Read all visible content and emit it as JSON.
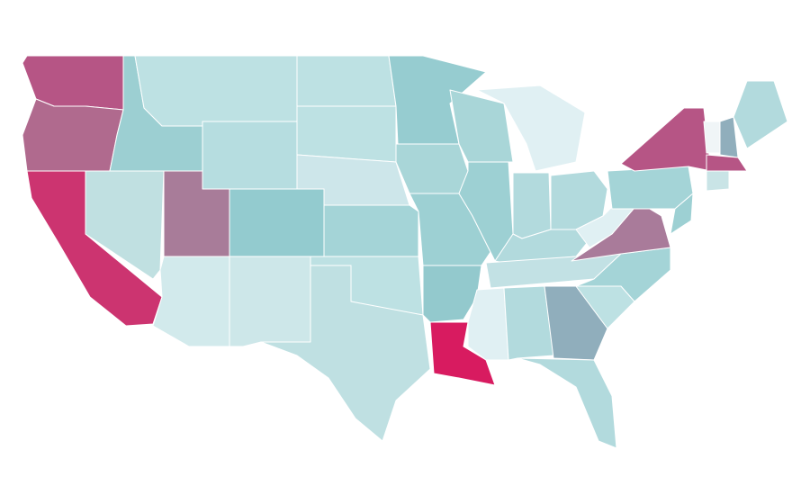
{
  "regions": [
    {
      "color": "#b65585"
    },
    {
      "color": "#b06a8e"
    },
    {
      "color": "#cc3470"
    },
    {
      "color": "#c0e0e1"
    },
    {
      "color": "#9ccfd2"
    },
    {
      "color": "#bde1e3"
    },
    {
      "color": "#b6dde0"
    },
    {
      "color": "#a87c99"
    },
    {
      "color": "#93cbcf"
    },
    {
      "color": "#d2eaec"
    },
    {
      "color": "#cde7e9"
    },
    {
      "color": "#bde1e3"
    },
    {
      "color": "#bde1e3"
    },
    {
      "color": "#cde6ea"
    },
    {
      "color": "#a4d4d7"
    },
    {
      "color": "#bde1e3"
    },
    {
      "color": "#bfe0e2"
    },
    {
      "color": "#96ccd0"
    },
    {
      "color": "#a9d6d8"
    },
    {
      "color": "#9dd0d3"
    },
    {
      "color": "#93c9cd"
    },
    {
      "color": "#d81b60"
    },
    {
      "color": "#a9d6d8"
    },
    {
      "color": "#9dd0d3"
    },
    {
      "color": "#e0f0f3"
    },
    {
      "color": "#b2dadd"
    },
    {
      "color": "#b2dadd"
    },
    {
      "color": "#b2dadd"
    },
    {
      "color": "#c2e1e4"
    },
    {
      "color": "#e0f0f3"
    },
    {
      "color": "#b2dadd"
    },
    {
      "color": "#90aebc"
    },
    {
      "color": "#b2dadd"
    },
    {
      "color": "#bde1e3"
    },
    {
      "color": "#a4d4d7"
    },
    {
      "color": "#a97b9a"
    },
    {
      "color": "#e0f0f3"
    },
    {
      "color": "#a4d4d7"
    },
    {
      "color": "#b65585"
    },
    {
      "color": "#9dd0d3"
    },
    {
      "color": "#f0f5f7"
    },
    {
      "color": "#90aebc"
    },
    {
      "color": "#b2dadd"
    },
    {
      "color": "#b65585"
    },
    {
      "color": "#c9e4e6"
    }
  ]
}
